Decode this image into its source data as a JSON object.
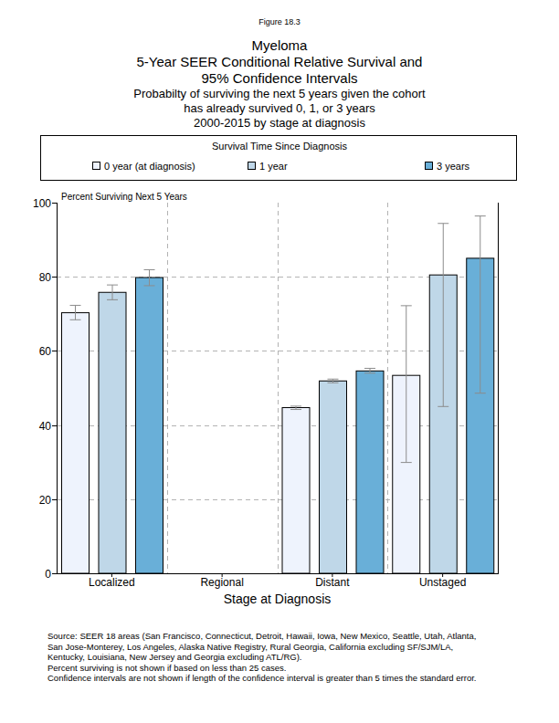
{
  "chart_data": {
    "type": "bar",
    "figure_label": "Figure 18.3",
    "title": "Myeloma",
    "subtitle": [
      "5-Year SEER Conditional Relative Survival and",
      "95% Confidence Intervals"
    ],
    "description": [
      "Probabilty of surviving the next 5 years given the cohort",
      "has already survived 0, 1, or 3 years",
      "2000-2015 by stage at diagnosis"
    ],
    "legend_title": "Survival Time Since Diagnosis",
    "legend": "top",
    "y_label": "Percent Surviving Next 5 Years",
    "x_label": "Stage at Diagnosis",
    "categories": [
      "Localized",
      "Regional",
      "Distant",
      "Unstaged"
    ],
    "series": [
      {
        "name": "0 year (at diagnosis)",
        "color": "#eef3fd",
        "values": [
          70.3,
          null,
          44.7,
          53.4
        ],
        "ci_lower": [
          68.4,
          null,
          44.2,
          29.9
        ],
        "ci_upper": [
          72.3,
          null,
          45.1,
          72.2
        ]
      },
      {
        "name": "1 year",
        "color": "#bfd7e8",
        "values": [
          75.8,
          null,
          51.9,
          80.5
        ],
        "ci_lower": [
          73.8,
          null,
          51.4,
          45.0
        ],
        "ci_upper": [
          77.8,
          null,
          52.4,
          94.4
        ]
      },
      {
        "name": "3 years",
        "color": "#69afd8",
        "values": [
          79.8,
          null,
          54.6,
          85.0
        ],
        "ci_lower": [
          77.6,
          null,
          54.0,
          48.6
        ],
        "ci_upper": [
          81.9,
          null,
          55.3,
          96.4
        ]
      }
    ],
    "ylim": [
      0,
      100
    ],
    "yticks": [
      0,
      20,
      40,
      60,
      80,
      100
    ],
    "grid": true,
    "notes": [
      "Source:  SEER 18 areas (San Francisco, Connecticut, Detroit, Hawaii, Iowa, New Mexico, Seattle, Utah, Atlanta,",
      "San Jose-Monterey, Los Angeles, Alaska Native Registry, Rural Georgia, California excluding SF/SJM/LA,",
      "Kentucky, Louisiana, New Jersey and Georgia excluding ATL/RG).",
      "Percent surviving is not shown if based on less than 25 cases.",
      "Confidence intervals are not shown if length of the confidence interval is greater than 5 times the standard error."
    ]
  }
}
